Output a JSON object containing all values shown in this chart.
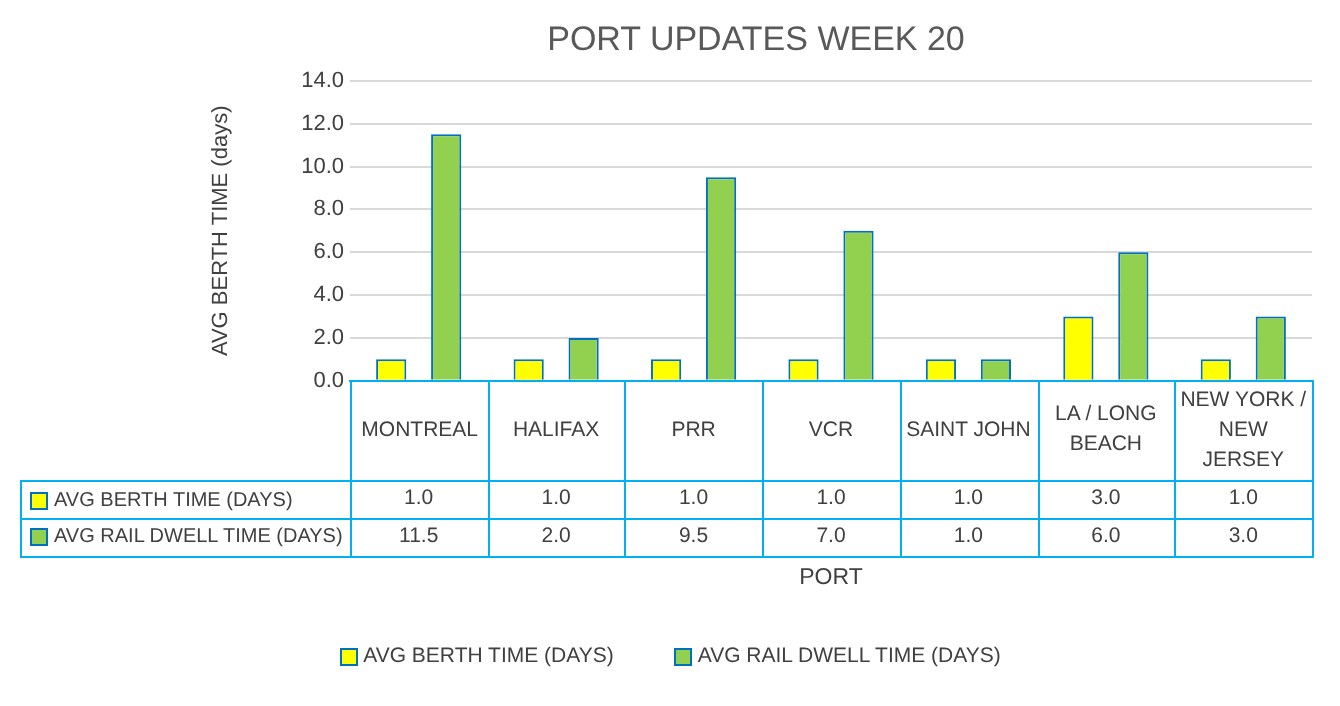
{
  "chart_data": {
    "type": "bar",
    "title": "PORT UPDATES WEEK 20",
    "xlabel": "PORT",
    "ylabel": "AVG BERTH TIME (days)",
    "categories": [
      "MONTREAL",
      "HALIFAX",
      "PRR",
      "VCR",
      "SAINT JOHN",
      "LA / LONG BEACH",
      "NEW YORK / NEW JERSEY"
    ],
    "series": [
      {
        "name": "AVG BERTH TIME (DAYS)",
        "color": "#ffff00",
        "values": [
          1.0,
          1.0,
          1.0,
          1.0,
          1.0,
          3.0,
          1.0
        ],
        "value_labels": [
          "1.0",
          "1.0",
          "1.0",
          "1.0",
          "1.0",
          "3.0",
          "1.0"
        ]
      },
      {
        "name": "AVG RAIL DWELL TIME (DAYS)",
        "color": "#92d050",
        "values": [
          11.5,
          2.0,
          9.5,
          7.0,
          1.0,
          6.0,
          3.0
        ],
        "value_labels": [
          "11.5",
          "2.0",
          "9.5",
          "7.0",
          "1.0",
          "6.0",
          "3.0"
        ]
      }
    ],
    "ylim": [
      0,
      14
    ],
    "yticks": [
      {
        "value": 0,
        "label": "0.0"
      },
      {
        "value": 2,
        "label": "2.0"
      },
      {
        "value": 4,
        "label": "4.0"
      },
      {
        "value": 6,
        "label": "6.0"
      },
      {
        "value": 8,
        "label": "8.0"
      },
      {
        "value": 10,
        "label": "10.0"
      },
      {
        "value": 12,
        "label": "12.0"
      },
      {
        "value": 14,
        "label": "14.0"
      }
    ],
    "grid": "y",
    "legend": "bottom"
  }
}
